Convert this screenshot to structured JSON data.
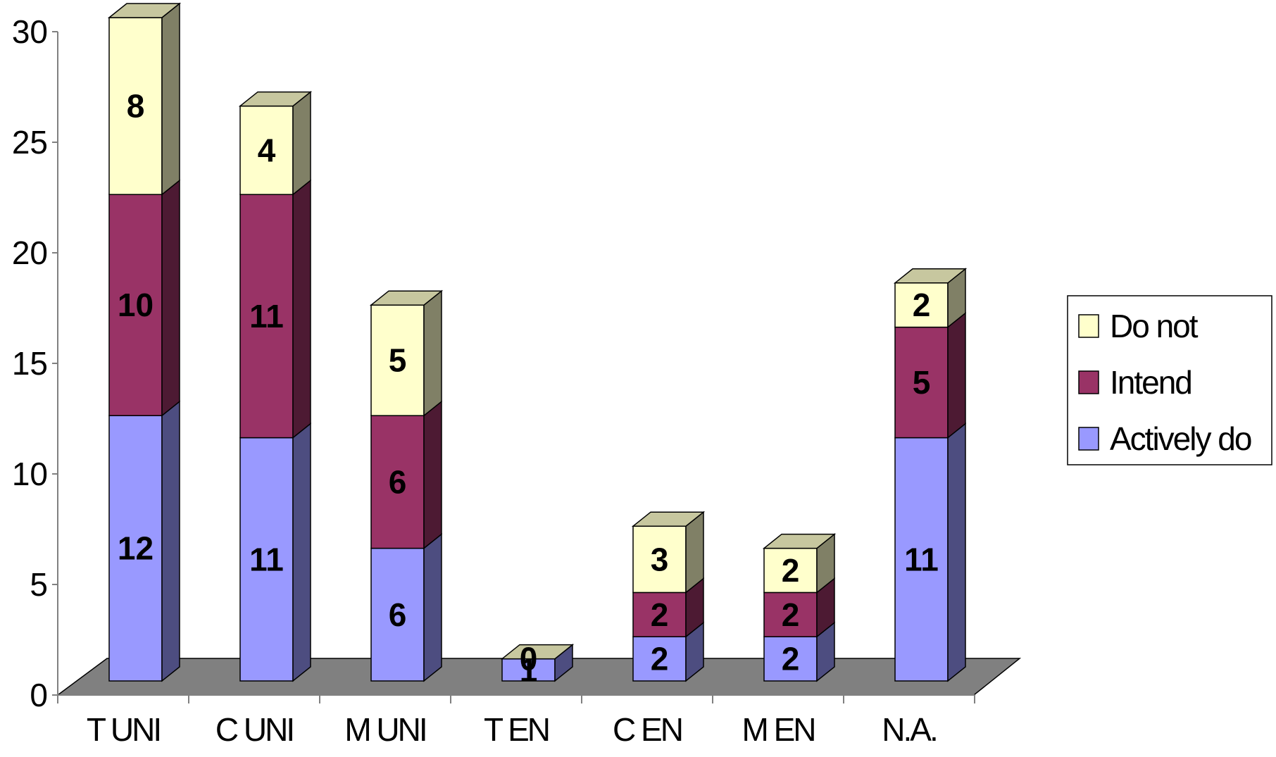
{
  "chart_data": {
    "type": "bar",
    "stacked": true,
    "three_d": true,
    "categories": [
      "T UNI",
      "C UNI",
      "M UNI",
      "T EN",
      "C EN",
      "M EN",
      "N.A."
    ],
    "series": [
      {
        "name": "Actively do",
        "values": [
          12,
          11,
          6,
          1,
          2,
          2,
          11
        ],
        "labels": [
          "12",
          "11",
          "6",
          "1",
          "2",
          "2",
          "11"
        ]
      },
      {
        "name": "Intend",
        "values": [
          10,
          11,
          6,
          0,
          2,
          2,
          5
        ],
        "labels": [
          "10",
          "11",
          "6",
          "",
          "2",
          "2",
          "5"
        ]
      },
      {
        "name": "Do not",
        "values": [
          8,
          4,
          5,
          0,
          3,
          2,
          2
        ],
        "labels": [
          "8",
          "4",
          "5",
          "0",
          "3",
          "2",
          "2"
        ]
      }
    ],
    "yticks": [
      "0",
      "5",
      "10",
      "15",
      "20",
      "25",
      "30"
    ],
    "ylim": [
      0,
      30
    ],
    "grid": false,
    "legend": "right",
    "colors": {
      "Actively do": "#9999ff",
      "Intend": "#993366",
      "Do not": "#ffffcc",
      "floor": "#808080"
    }
  }
}
